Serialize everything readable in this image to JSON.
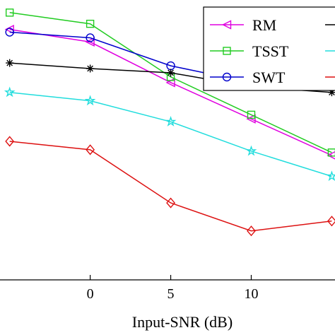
{
  "chart_data": {
    "type": "line",
    "xlabel": "Input-SNR (dB)",
    "ylabel": "",
    "xlim": [
      -5.6,
      15.2
    ],
    "ylim": [
      0,
      1
    ],
    "xticks": [
      0,
      5,
      10
    ],
    "x": [
      -5,
      0,
      5,
      10,
      15
    ],
    "grid": false,
    "legend_position": "top-right",
    "series": [
      {
        "name": "RM",
        "color": "#e000e0",
        "marker": "triangle-left",
        "values": [
          0.895,
          0.85,
          0.705,
          0.575,
          0.445
        ]
      },
      {
        "name": "TSST",
        "color": "#22cc22",
        "marker": "square",
        "values": [
          0.955,
          0.915,
          0.725,
          0.59,
          0.455
        ]
      },
      {
        "name": "SWT",
        "color": "#0000cc",
        "marker": "circle",
        "values": [
          0.885,
          0.865,
          0.765,
          0.705,
          0.695
        ]
      },
      {
        "name": "",
        "color": "#000000",
        "marker": "asterisk",
        "values": [
          0.775,
          0.755,
          0.74,
          0.69,
          0.67
        ]
      },
      {
        "name": "",
        "color": "#22dddd",
        "marker": "star",
        "values": [
          0.67,
          0.64,
          0.565,
          0.46,
          0.37
        ]
      },
      {
        "name": "",
        "color": "#dd1111",
        "marker": "diamond",
        "values": [
          0.495,
          0.465,
          0.275,
          0.175,
          0.21
        ]
      }
    ]
  }
}
